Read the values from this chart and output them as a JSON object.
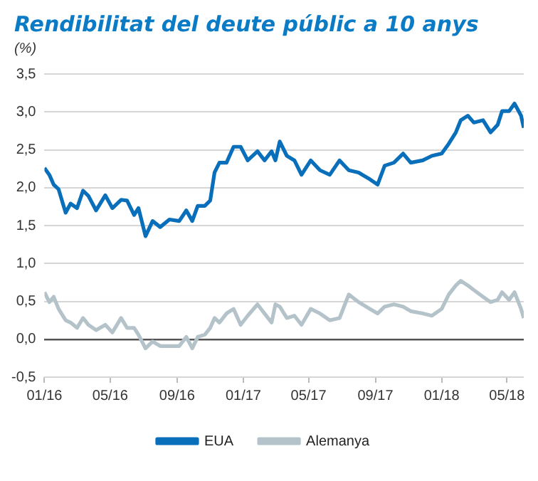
{
  "chart_data": {
    "type": "line",
    "title": "Rendibilitat del deute públic a 10 anys",
    "ylabel": "(%)",
    "x": [
      "2016-01-01",
      "2016-01-10",
      "2016-01-18",
      "2016-01-27",
      "2016-02-09",
      "2016-02-18",
      "2016-03-01",
      "2016-03-12",
      "2016-03-22",
      "2016-04-05",
      "2016-04-22",
      "2016-05-05",
      "2016-05-21",
      "2016-06-01",
      "2016-06-14",
      "2016-06-22",
      "2016-07-05",
      "2016-07-18",
      "2016-08-01",
      "2016-08-18",
      "2016-09-05",
      "2016-09-18",
      "2016-09-29",
      "2016-10-09",
      "2016-10-22",
      "2016-11-01",
      "2016-11-09",
      "2016-11-18",
      "2016-12-01",
      "2016-12-14",
      "2016-12-27",
      "2017-01-09",
      "2017-01-27",
      "2017-02-09",
      "2017-02-22",
      "2017-03-01",
      "2017-03-09",
      "2017-03-22",
      "2017-04-05",
      "2017-04-18",
      "2017-05-05",
      "2017-05-22",
      "2017-06-09",
      "2017-06-27",
      "2017-07-14",
      "2017-08-01",
      "2017-08-22",
      "2017-09-05",
      "2017-09-18",
      "2017-10-05",
      "2017-10-22",
      "2017-11-05",
      "2017-11-27",
      "2017-12-14",
      "2018-01-01",
      "2018-01-14",
      "2018-01-27",
      "2018-02-05",
      "2018-02-18",
      "2018-03-01",
      "2018-03-18",
      "2018-04-01",
      "2018-04-14",
      "2018-04-22",
      "2018-05-05",
      "2018-05-15",
      "2018-05-27",
      "2018-06-01"
    ],
    "series": [
      {
        "name": "EUA",
        "color": "#0a6fba",
        "values": [
          2.26,
          2.17,
          2.04,
          1.98,
          1.67,
          1.79,
          1.73,
          1.96,
          1.89,
          1.7,
          1.9,
          1.73,
          1.84,
          1.83,
          1.64,
          1.73,
          1.36,
          1.56,
          1.48,
          1.58,
          1.56,
          1.7,
          1.56,
          1.76,
          1.76,
          1.83,
          2.2,
          2.33,
          2.33,
          2.54,
          2.54,
          2.36,
          2.48,
          2.36,
          2.48,
          2.36,
          2.61,
          2.42,
          2.36,
          2.17,
          2.36,
          2.23,
          2.17,
          2.36,
          2.23,
          2.2,
          2.11,
          2.04,
          2.29,
          2.33,
          2.45,
          2.33,
          2.36,
          2.42,
          2.45,
          2.58,
          2.73,
          2.89,
          2.95,
          2.86,
          2.89,
          2.73,
          2.83,
          3.01,
          3.01,
          3.11,
          2.95,
          2.79
        ]
      },
      {
        "name": "Alemanya",
        "color": "#b4c3c9",
        "values": [
          0.62,
          0.49,
          0.56,
          0.4,
          0.25,
          0.22,
          0.15,
          0.28,
          0.19,
          0.12,
          0.19,
          0.09,
          0.28,
          0.15,
          0.15,
          0.06,
          -0.12,
          -0.03,
          -0.09,
          -0.09,
          -0.09,
          0.03,
          -0.12,
          0.03,
          0.06,
          0.15,
          0.28,
          0.22,
          0.34,
          0.4,
          0.19,
          0.31,
          0.46,
          0.34,
          0.22,
          0.46,
          0.43,
          0.28,
          0.31,
          0.19,
          0.4,
          0.34,
          0.25,
          0.28,
          0.59,
          0.49,
          0.4,
          0.34,
          0.43,
          0.46,
          0.43,
          0.37,
          0.34,
          0.31,
          0.4,
          0.59,
          0.71,
          0.77,
          0.71,
          0.65,
          0.56,
          0.49,
          0.52,
          0.62,
          0.52,
          0.62,
          0.4,
          0.28
        ]
      }
    ],
    "xlim": [
      "2016-01-01",
      "2018-06-01"
    ],
    "xticks": [
      {
        "value": "2016-01-01",
        "label": "01/16"
      },
      {
        "value": "2016-05-01",
        "label": "05/16"
      },
      {
        "value": "2016-09-01",
        "label": "09/16"
      },
      {
        "value": "2017-01-01",
        "label": "01/17"
      },
      {
        "value": "2017-05-01",
        "label": "05/17"
      },
      {
        "value": "2017-09-01",
        "label": "09/17"
      },
      {
        "value": "2018-01-01",
        "label": "01/18"
      },
      {
        "value": "2018-05-01",
        "label": "05/18"
      }
    ],
    "ylim": [
      -0.5,
      3.5
    ],
    "yticks": [
      {
        "value": -0.5,
        "label": "-0,5"
      },
      {
        "value": 0,
        "label": "0,0"
      },
      {
        "value": 0.5,
        "label": "0,5"
      },
      {
        "value": 1,
        "label": "1,0"
      },
      {
        "value": 1.5,
        "label": "1,5"
      },
      {
        "value": 2,
        "label": "2,0"
      },
      {
        "value": 2.5,
        "label": "2,5"
      },
      {
        "value": 3,
        "label": "3,0"
      },
      {
        "value": 3.5,
        "label": "3,5"
      }
    ],
    "grid": "y",
    "legend": "bottom",
    "marker": "none",
    "line_style": "solid"
  }
}
